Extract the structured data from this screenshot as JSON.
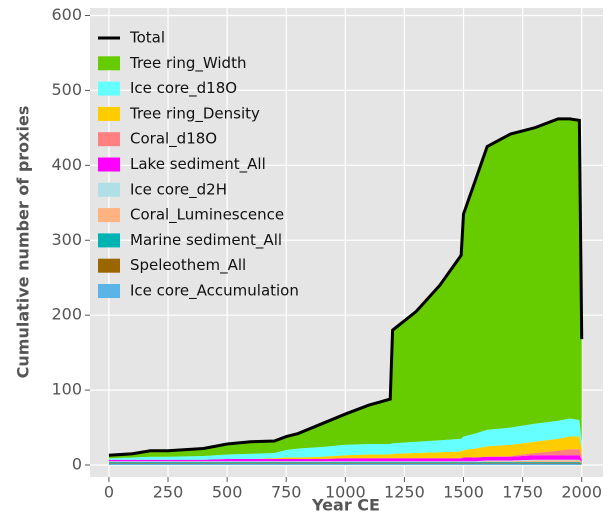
{
  "chart_data": {
    "type": "stacked-area",
    "xlabel": "Year CE",
    "ylabel": "Cumulative number of proxies",
    "x": [
      0,
      100,
      175,
      250,
      400,
      500,
      600,
      700,
      750,
      800,
      900,
      1000,
      1100,
      1190,
      1200,
      1300,
      1400,
      1490,
      1500,
      1550,
      1600,
      1700,
      1800,
      1900,
      1950,
      1990,
      2000
    ],
    "total": {
      "name": "Total",
      "color": "#000000",
      "values": [
        13,
        15,
        19,
        19,
        22,
        28,
        31,
        32,
        38,
        42,
        55,
        68,
        80,
        88,
        180,
        205,
        240,
        280,
        335,
        380,
        425,
        442,
        450,
        462,
        462,
        460,
        168
      ]
    },
    "series": [
      {
        "name": "Tree ring_Width",
        "color": "#66cc00",
        "values": [
          4,
          5,
          8,
          8,
          10,
          14,
          16,
          16,
          18,
          20,
          31,
          41,
          52,
          60,
          151,
          174,
          207,
          245,
          297,
          338,
          378,
          392,
          395,
          403,
          400,
          400,
          138
        ]
      },
      {
        "name": "Ice core_d18O",
        "color": "#66ffff",
        "values": [
          2,
          3,
          4,
          4,
          5,
          6,
          7,
          7,
          10,
          12,
          13,
          14,
          14,
          14,
          14,
          15,
          16,
          17,
          18,
          20,
          22,
          23,
          24,
          24,
          24,
          22,
          8
        ]
      },
      {
        "name": "Tree ring_Density",
        "color": "#ffcc00",
        "values": [
          0,
          0,
          0,
          0,
          0,
          0,
          0,
          1,
          2,
          2,
          3,
          4,
          5,
          5,
          6,
          7,
          8,
          9,
          10,
          12,
          14,
          15,
          15,
          16,
          17,
          17,
          10
        ]
      },
      {
        "name": "Coral_d18O",
        "color": "#ff8080",
        "values": [
          0,
          0,
          0,
          0,
          0,
          0,
          0,
          0,
          0,
          0,
          0,
          0,
          0,
          0,
          0,
          0,
          0,
          0,
          0,
          0,
          0,
          1,
          3,
          6,
          8,
          8,
          5
        ]
      },
      {
        "name": "Lake sediment_All",
        "color": "#ff00ff",
        "values": [
          2,
          2,
          2,
          2,
          2,
          3,
          3,
          3,
          3,
          3,
          3,
          4,
          4,
          4,
          4,
          4,
          4,
          4,
          5,
          5,
          5,
          5,
          6,
          6,
          6,
          6,
          3
        ]
      },
      {
        "name": "Ice core_d2H",
        "color": "#b0e0e6",
        "values": [
          1,
          1,
          1,
          1,
          1,
          1,
          1,
          1,
          1,
          1,
          1,
          1,
          1,
          1,
          1,
          1,
          1,
          1,
          1,
          1,
          1,
          1,
          1,
          1,
          1,
          1,
          0
        ]
      },
      {
        "name": "Coral_Luminescence",
        "color": "#ffb380",
        "values": [
          0,
          0,
          0,
          0,
          0,
          0,
          0,
          0,
          0,
          0,
          0,
          0,
          0,
          0,
          0,
          0,
          0,
          0,
          0,
          0,
          1,
          1,
          2,
          2,
          2,
          2,
          1
        ]
      },
      {
        "name": "Marine sediment_All",
        "color": "#00b3b3",
        "values": [
          1,
          1,
          1,
          1,
          1,
          1,
          1,
          1,
          1,
          1,
          1,
          1,
          1,
          1,
          1,
          1,
          1,
          1,
          1,
          1,
          1,
          1,
          1,
          1,
          1,
          1,
          1
        ]
      },
      {
        "name": "Speleothem_All",
        "color": "#996600",
        "values": [
          1,
          1,
          1,
          1,
          1,
          1,
          1,
          1,
          1,
          1,
          1,
          1,
          1,
          1,
          1,
          1,
          1,
          1,
          1,
          1,
          1,
          1,
          1,
          1,
          1,
          1,
          1
        ]
      },
      {
        "name": "Ice core_Accumulation",
        "color": "#5ab4e5",
        "values": [
          2,
          2,
          2,
          2,
          2,
          2,
          2,
          2,
          2,
          2,
          2,
          2,
          2,
          2,
          2,
          2,
          2,
          2,
          2,
          2,
          2,
          2,
          2,
          2,
          2,
          2,
          1
        ]
      }
    ],
    "xlim": [
      -80,
      2090
    ],
    "ylim": [
      -16,
      610
    ],
    "xticks": [
      0,
      250,
      500,
      750,
      1000,
      1250,
      1500,
      1750,
      2000
    ],
    "yticks": [
      0,
      100,
      200,
      300,
      400,
      500,
      600
    ],
    "grid": true,
    "legend": "upper left"
  }
}
